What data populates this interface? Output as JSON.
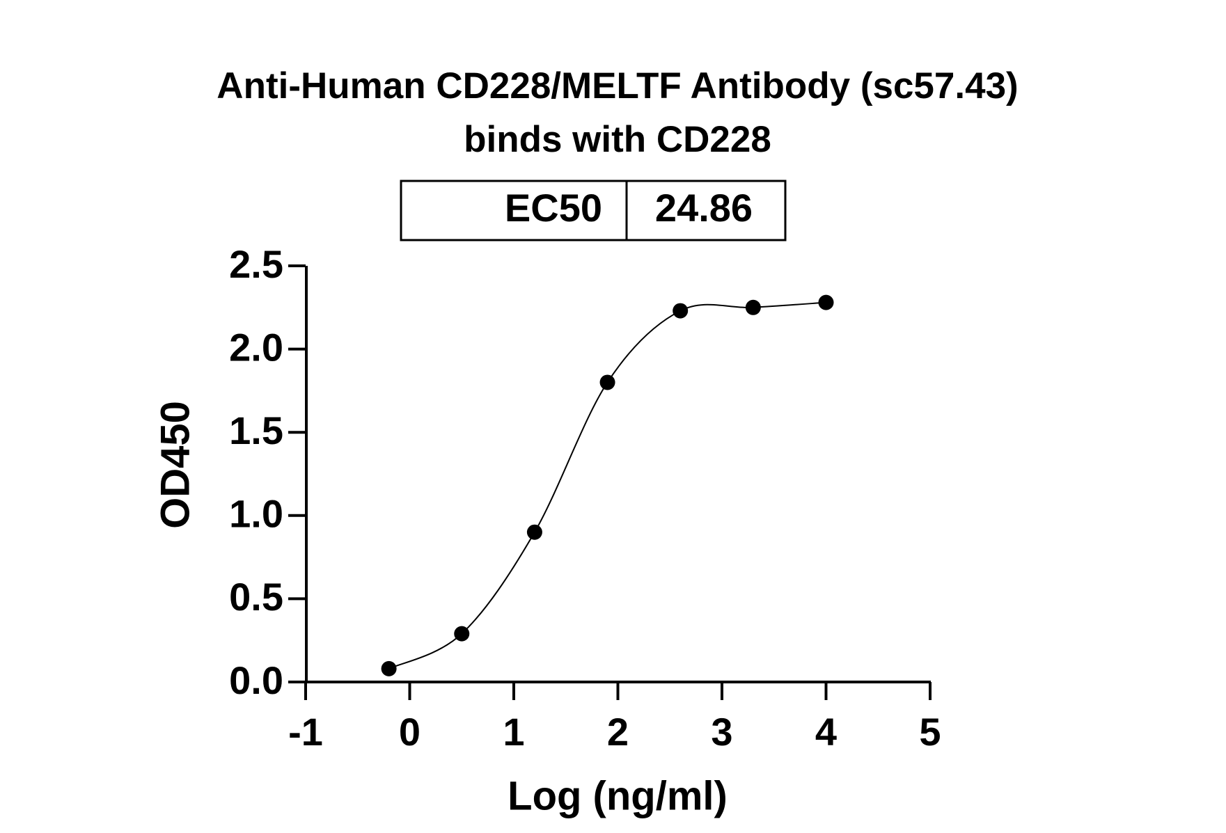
{
  "chart_data": {
    "type": "scatter",
    "title": "Anti-Human CD228/MELTF Antibody (sc57.43)",
    "subtitle": "binds with CD228",
    "annotation": {
      "label": "EC50",
      "value": 24.86
    },
    "x_label": "Log (ng/ml)",
    "y_label": "OD450",
    "x": [
      -0.2,
      0.5,
      1.2,
      1.9,
      2.6,
      3.3,
      4.0
    ],
    "values": [
      0.08,
      0.29,
      0.9,
      1.8,
      2.23,
      2.25,
      2.28
    ],
    "color": "#000000",
    "fit_line": true,
    "xlim": [
      -1,
      5
    ],
    "xticks": [
      -1,
      0,
      1,
      2,
      3,
      4,
      5
    ],
    "ylim": [
      0,
      2.5
    ],
    "yticks": [
      {
        "value": 0,
        "label": "0.0"
      },
      0.5,
      {
        "value": 1,
        "label": "1.0"
      },
      1.5,
      {
        "value": 2,
        "label": "2.0"
      },
      2.5
    ]
  }
}
